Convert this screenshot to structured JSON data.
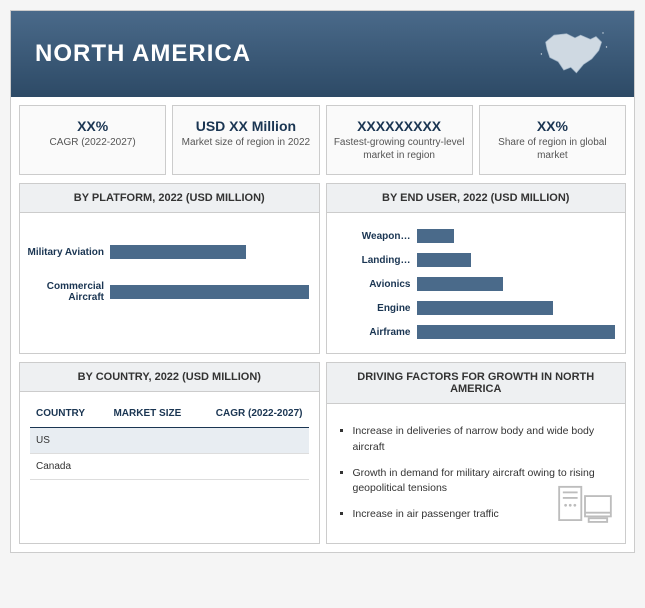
{
  "header": {
    "title": "NORTH AMERICA"
  },
  "kpis": [
    {
      "value": "XX%",
      "label": "CAGR (2022-2027)"
    },
    {
      "value": "USD XX Million",
      "label": "Market size of region in 2022"
    },
    {
      "value": "XXXXXXXXX",
      "label": "Fastest-growing country-level market in region"
    },
    {
      "value": "XX%",
      "label": "Share of region in global market"
    }
  ],
  "platform": {
    "title": "BY PLATFORM, 2022 (USD MILLION)",
    "type": "bar-horizontal",
    "bar_color": "#4a6a8a",
    "label_color": "#1a3552",
    "series": [
      {
        "label": "Military Aviation",
        "value": 55
      },
      {
        "label": "Commercial Aircraft",
        "value": 80
      }
    ]
  },
  "enduser": {
    "title": "BY END USER, 2022 (USD MILLION)",
    "type": "bar-horizontal",
    "bar_color": "#4a6a8a",
    "label_color": "#1a3552",
    "series": [
      {
        "label": "Weapon…",
        "value": 15
      },
      {
        "label": "Landing…",
        "value": 22
      },
      {
        "label": "Avionics",
        "value": 35
      },
      {
        "label": "Engine",
        "value": 55
      },
      {
        "label": "Airframe",
        "value": 80
      }
    ]
  },
  "country": {
    "title": "BY COUNTRY, 2022 (USD MILLION)",
    "columns": [
      "COUNTRY",
      "MARKET SIZE",
      "CAGR (2022-2027)"
    ],
    "rows": [
      {
        "name": "US",
        "size": "",
        "cagr": "",
        "highlight": true
      },
      {
        "name": "Canada",
        "size": "",
        "cagr": "",
        "highlight": false
      }
    ]
  },
  "factors": {
    "title": "DRIVING FACTORS FOR GROWTH IN NORTH AMERICA",
    "items": [
      "Increase in deliveries of narrow body and wide body aircraft",
      "Growth in demand for military aircraft owing to rising geopolitical tensions",
      "Increase in air passenger traffic"
    ]
  },
  "colors": {
    "header_grad_from": "#4a6a8a",
    "header_grad_to": "#2d4a66",
    "panel_header_bg": "#eef0f2",
    "border": "#cccccc",
    "text_dark": "#1a3552"
  }
}
